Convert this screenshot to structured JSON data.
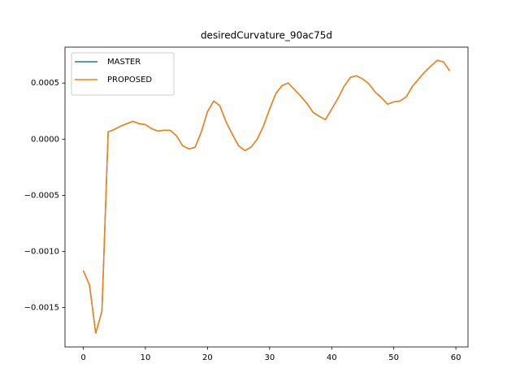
{
  "chart_data": {
    "type": "line",
    "title": "desiredCurvature_90ac75d",
    "x": [
      0,
      1,
      2,
      3,
      4,
      5,
      6,
      7,
      8,
      9,
      10,
      11,
      12,
      13,
      14,
      15,
      16,
      17,
      18,
      19,
      20,
      21,
      22,
      23,
      24,
      25,
      26,
      27,
      28,
      29,
      30,
      31,
      32,
      33,
      34,
      35,
      36,
      37,
      38,
      39,
      40,
      41,
      42,
      43,
      44,
      45,
      46,
      47,
      48,
      49,
      50,
      51,
      52,
      53,
      54,
      55,
      56,
      57,
      58,
      59
    ],
    "series": [
      {
        "name": "MASTER",
        "color": "#1f77b4",
        "values": [
          -0.00117,
          -0.0013,
          -0.00173,
          -0.00153,
          6.5e-05,
          8.7e-05,
          0.000116,
          0.000138,
          0.000159,
          0.000138,
          0.00013,
          9.4e-05,
          7.2e-05,
          8e-05,
          8e-05,
          3e-05,
          -5.8e-05,
          -8.7e-05,
          -7.2e-05,
          6.5e-05,
          0.000246,
          0.00034,
          0.000297,
          0.000152,
          4.3e-05,
          -5.8e-05,
          -0.000101,
          -7.2e-05,
          0,
          0.000116,
          0.000268,
          0.000406,
          0.000478,
          0.0005,
          0.000442,
          0.000384,
          0.000319,
          0.000239,
          0.000203,
          0.000174,
          0.000268,
          0.000362,
          0.000471,
          0.00055,
          0.000565,
          0.000536,
          0.000493,
          0.00042,
          0.00037,
          0.000312,
          0.000333,
          0.00034,
          0.000377,
          0.000471,
          0.000536,
          0.0006,
          0.000652,
          0.000703,
          0.000688,
          0.000609
        ]
      },
      {
        "name": "PROPOSED",
        "color": "#ff7f0e",
        "values": [
          -0.00117,
          -0.0013,
          -0.00173,
          -0.00153,
          6.5e-05,
          8.7e-05,
          0.000116,
          0.000138,
          0.000159,
          0.000138,
          0.00013,
          9.4e-05,
          7.2e-05,
          8e-05,
          8e-05,
          3e-05,
          -5.8e-05,
          -8.7e-05,
          -7.2e-05,
          6.5e-05,
          0.000246,
          0.00034,
          0.000297,
          0.000152,
          4.3e-05,
          -5.8e-05,
          -0.000101,
          -7.2e-05,
          0,
          0.000116,
          0.000268,
          0.000406,
          0.000478,
          0.0005,
          0.000442,
          0.000384,
          0.000319,
          0.000239,
          0.000203,
          0.000174,
          0.000268,
          0.000362,
          0.000471,
          0.00055,
          0.000565,
          0.000536,
          0.000493,
          0.00042,
          0.00037,
          0.000312,
          0.000333,
          0.00034,
          0.000377,
          0.000471,
          0.000536,
          0.0006,
          0.000652,
          0.000703,
          0.000688,
          0.000609
        ]
      }
    ],
    "xlim": [
      -2.95,
      61.95
    ],
    "xticks": [
      0,
      10,
      20,
      30,
      40,
      50,
      60
    ],
    "ylim": [
      -0.00185,
      0.00082
    ],
    "yticks": [
      {
        "value": -0.0015,
        "label": "−0.0015"
      },
      {
        "value": -0.001,
        "label": "−0.0010"
      },
      {
        "value": -0.0005,
        "label": "−0.0005"
      },
      {
        "value": 0,
        "label": "0.0000"
      },
      {
        "value": 0.0005,
        "label": "0.0005"
      }
    ],
    "legend": "upper left",
    "grid": false
  }
}
